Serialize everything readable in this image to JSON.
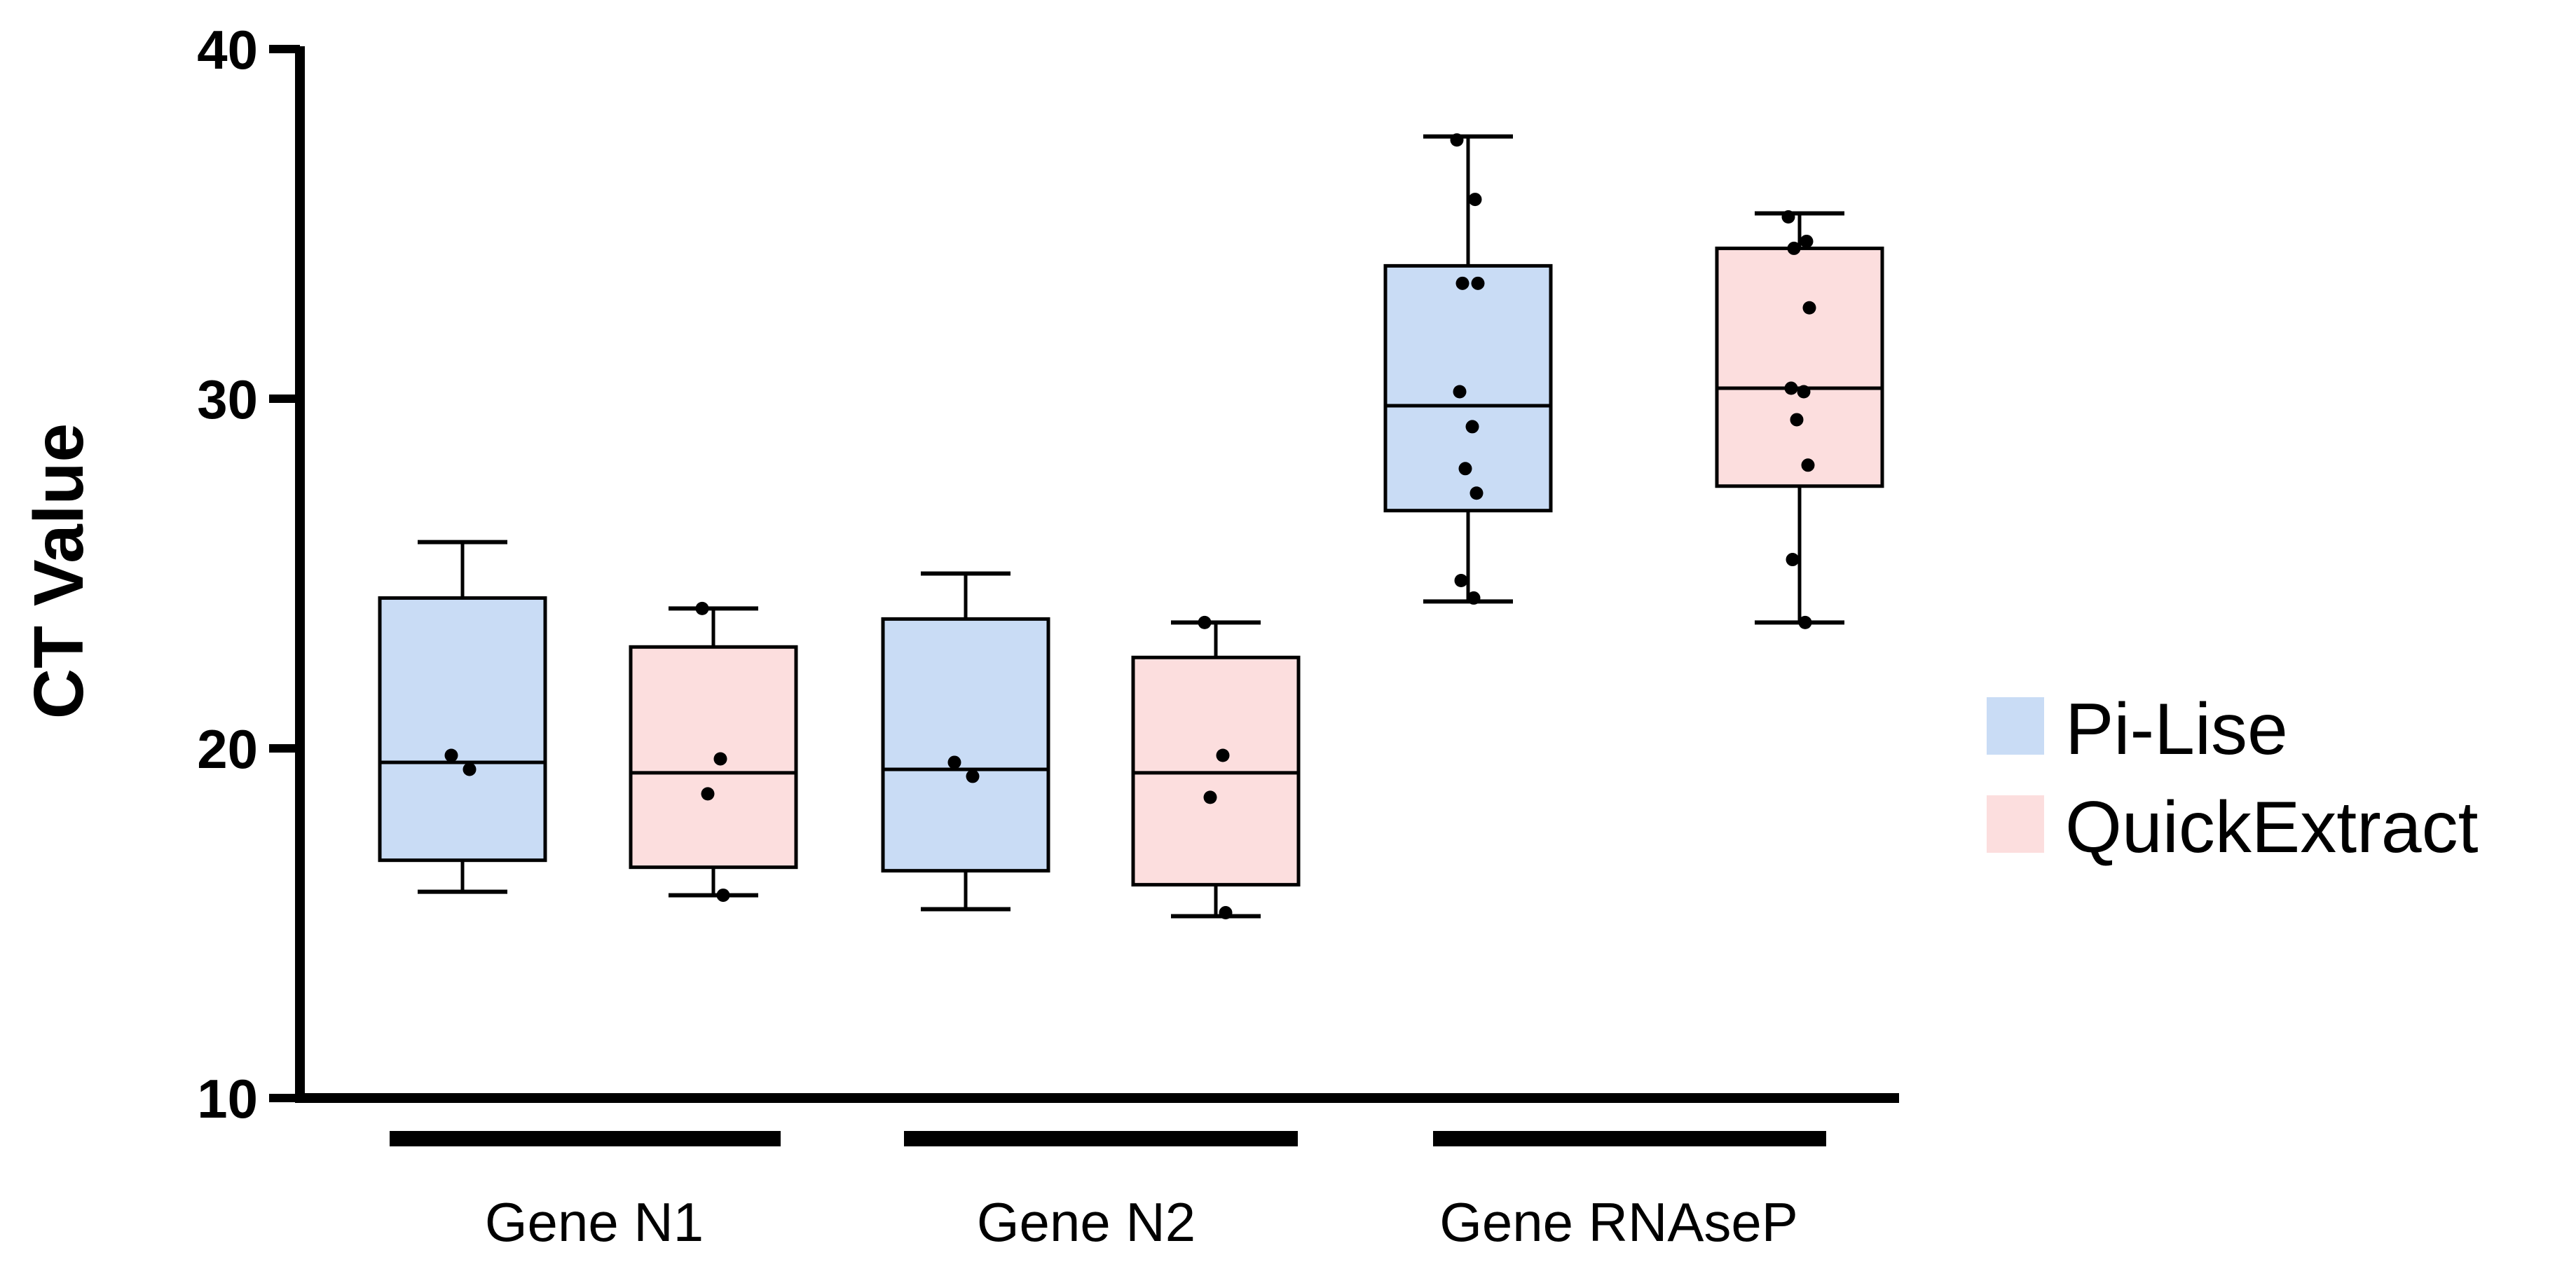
{
  "chart_data": {
    "type": "box",
    "ylabel": "CT Value",
    "ylim": [
      10,
      40
    ],
    "yticks": [
      10,
      20,
      30,
      40
    ],
    "categories": [
      "Gene N1",
      "Gene N2",
      "Gene RNAseP"
    ],
    "legend_position": "right",
    "grid": false,
    "series": [
      {
        "name": "Pi-Lise",
        "color": "#c9dcf5",
        "boxes": [
          {
            "category": "Gene N1",
            "min": 15.9,
            "q1": 16.8,
            "median": 19.6,
            "q3": 24.3,
            "max": 25.9,
            "points": [
              19.8,
              19.4
            ]
          },
          {
            "category": "Gene N2",
            "min": 15.4,
            "q1": 16.5,
            "median": 19.4,
            "q3": 23.7,
            "max": 25.0,
            "points": [
              19.6,
              19.2
            ]
          },
          {
            "category": "Gene RNAseP",
            "min": 24.2,
            "q1": 26.8,
            "median": 29.8,
            "q3": 33.8,
            "max": 37.5,
            "points": [
              37.4,
              35.7,
              33.3,
              33.3,
              30.2,
              29.2,
              28.0,
              27.3,
              24.8,
              24.3
            ]
          }
        ]
      },
      {
        "name": "QuickExtract",
        "color": "#fcdede",
        "boxes": [
          {
            "category": "Gene N1",
            "min": 15.8,
            "q1": 16.6,
            "median": 19.3,
            "q3": 22.9,
            "max": 24.0,
            "points": [
              24.0,
              19.7,
              18.7,
              15.8
            ]
          },
          {
            "category": "Gene N2",
            "min": 15.2,
            "q1": 16.1,
            "median": 19.3,
            "q3": 22.6,
            "max": 23.6,
            "points": [
              23.6,
              19.8,
              18.6,
              15.3
            ]
          },
          {
            "category": "Gene RNAseP",
            "min": 23.6,
            "q1": 27.5,
            "median": 30.3,
            "q3": 34.3,
            "max": 35.3,
            "points": [
              35.2,
              34.5,
              34.3,
              32.6,
              30.3,
              30.2,
              29.4,
              28.1,
              25.4,
              23.6
            ]
          }
        ]
      }
    ]
  }
}
